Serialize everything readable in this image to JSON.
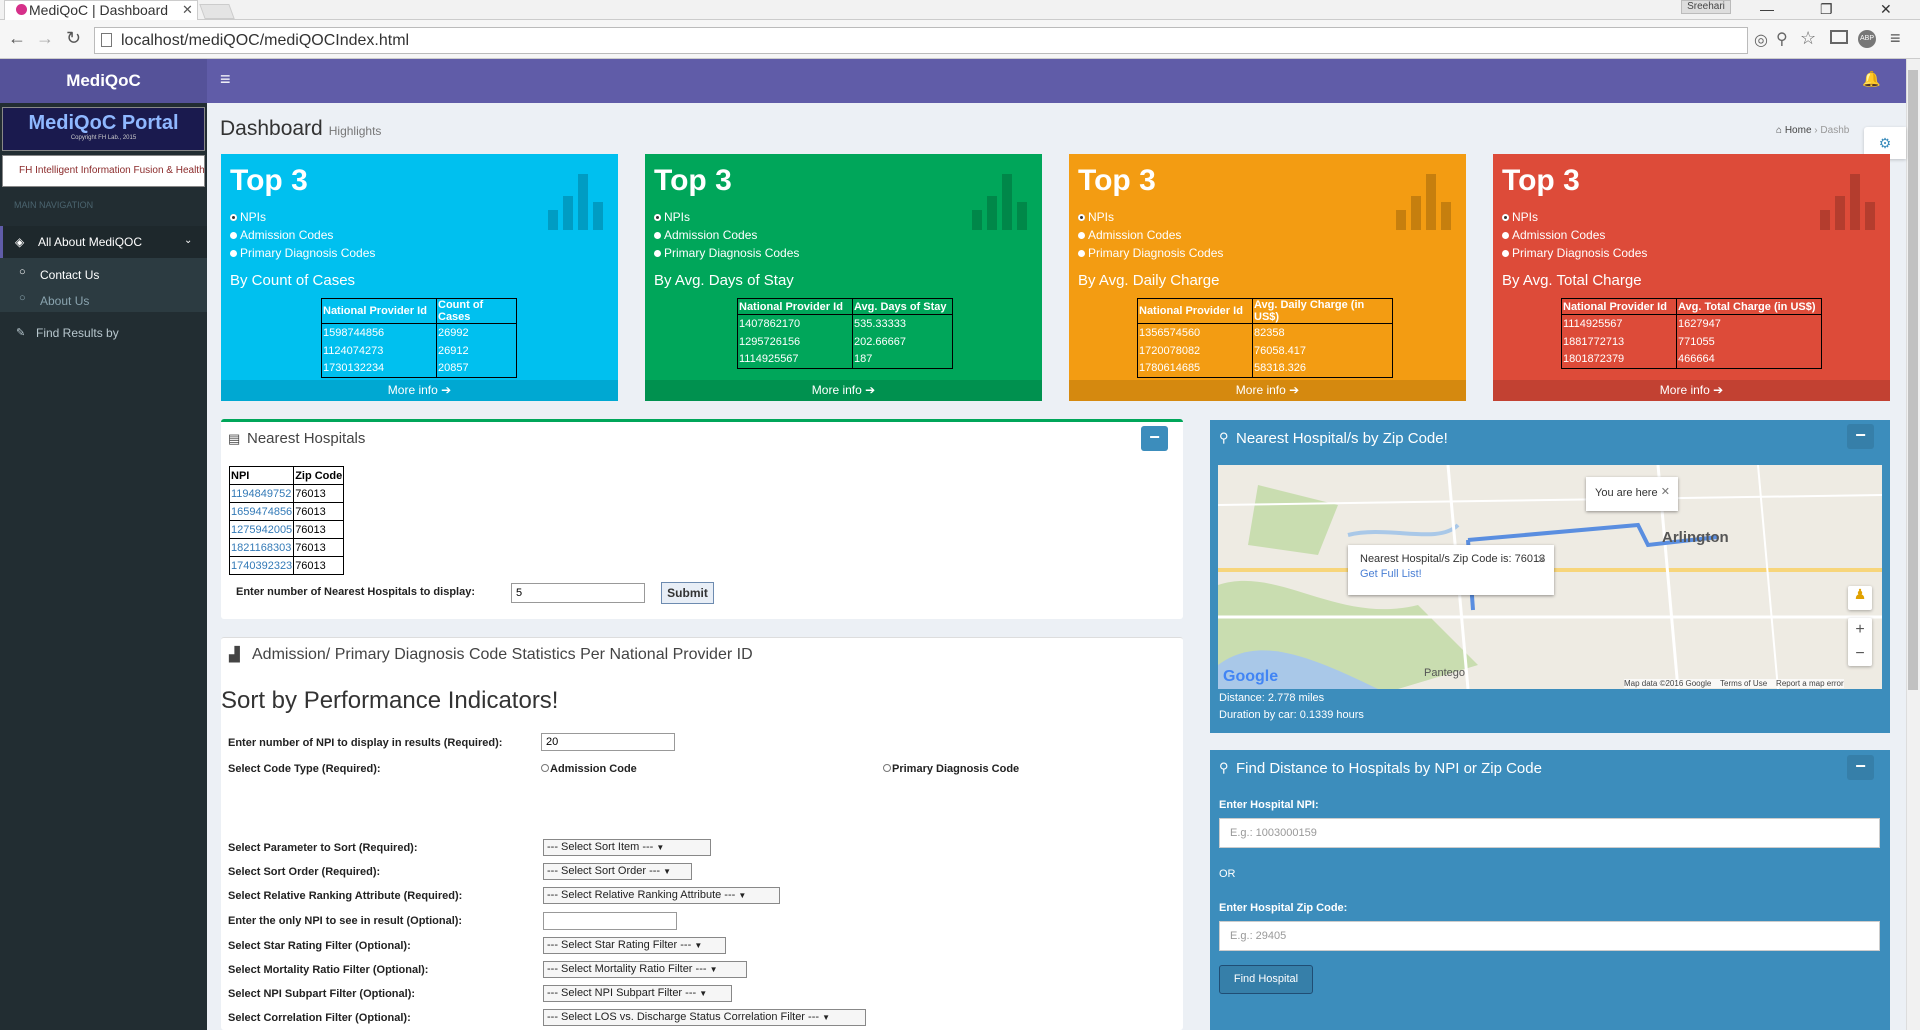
{
  "browser": {
    "tab_title": "MediQoC | Dashboard",
    "url": "localhost/mediQOC/mediQOCIndex.html",
    "user_badge": "Sreehari"
  },
  "colors": {
    "header": "#605ca8",
    "sidebar": "#222d32",
    "aqua": "#00c0ef",
    "green": "#00a65a",
    "yellow": "#f39c12",
    "red": "#dd4b39",
    "primary": "#3c8dbc"
  },
  "app": {
    "logo": "MediQoC"
  },
  "sidebar": {
    "portal_title": "MediQoC Portal",
    "portal_copyright": "Copyright FH Lab., 2015",
    "lab_name": "FH Intelligent Information Fusion & Healthcare Lab",
    "nav_header": "MAIN NAVIGATION",
    "items": [
      {
        "label": "All About MediQOC"
      },
      {
        "label": "Contact Us"
      },
      {
        "label": "About Us"
      },
      {
        "label": "Find Results by"
      }
    ]
  },
  "page": {
    "title": "Dashboard",
    "subtitle": "Highlights",
    "breadcrumb_home": "Home",
    "breadcrumb_current": "Dashb"
  },
  "stat_boxes": [
    {
      "title": "Top 3",
      "options": [
        "NPIs",
        "Admission Codes",
        "Primary Diagnosis Codes"
      ],
      "by": "By Count of Cases",
      "headers": [
        "National Provider Id",
        "Count of Cases"
      ],
      "rows": [
        [
          "1598744856",
          "26992"
        ],
        [
          "1124074273",
          "26912"
        ],
        [
          "1730132234",
          "20857"
        ]
      ],
      "more": "More info"
    },
    {
      "title": "Top 3",
      "options": [
        "NPIs",
        "Admission Codes",
        "Primary Diagnosis Codes"
      ],
      "by": "By Avg. Days of Stay",
      "headers": [
        "National Provider Id",
        "Avg. Days of Stay"
      ],
      "rows": [
        [
          "1407862170",
          "535.33333"
        ],
        [
          "1295726156",
          "202.66667"
        ],
        [
          "1114925567",
          "187"
        ]
      ],
      "more": "More info"
    },
    {
      "title": "Top 3",
      "options": [
        "NPIs",
        "Admission Codes",
        "Primary Diagnosis Codes"
      ],
      "by": "By Avg. Daily Charge",
      "headers": [
        "National Provider Id",
        "Avg. Daily Charge (in US$)"
      ],
      "rows": [
        [
          "1356574560",
          "82358"
        ],
        [
          "1720078082",
          "76058.417"
        ],
        [
          "1780614685",
          "58318.326"
        ]
      ],
      "more": "More info"
    },
    {
      "title": "Top 3",
      "options": [
        "NPIs",
        "Admission Codes",
        "Primary Diagnosis Codes"
      ],
      "by": "By Avg. Total Charge",
      "headers": [
        "National Provider Id",
        "Avg. Total Charge (in US$)"
      ],
      "rows": [
        [
          "1114925567",
          "1627947"
        ],
        [
          "1881772713",
          "771055"
        ],
        [
          "1801872379",
          "466664"
        ]
      ],
      "more": "More info"
    }
  ],
  "nearest": {
    "title": "Nearest Hospitals",
    "headers": [
      "NPI",
      "Zip Code"
    ],
    "rows": [
      [
        "1194849752",
        "76013"
      ],
      [
        "1659474856",
        "76013"
      ],
      [
        "1275942005",
        "76013"
      ],
      [
        "1821168303",
        "76013"
      ],
      [
        "1740392323",
        "76013"
      ]
    ],
    "count_label": "Enter number of Nearest Hospitals to display:",
    "count_value": "5",
    "submit": "Submit"
  },
  "stats": {
    "title": "Admission/ Primary Diagnosis Code Statistics Per National Provider ID",
    "heading": "Sort by Performance Indicators!",
    "npi_count_label": "Enter number of NPI to display in results (Required):",
    "npi_count_value": "20",
    "code_type_label": "Select Code Type (Required):",
    "code_admission": "Admission Code",
    "code_primary": "Primary Diagnosis Code",
    "fields": [
      {
        "label": "Select Parameter to Sort (Required):",
        "value": "--- Select Sort Item ---"
      },
      {
        "label": "Select Sort Order (Required):",
        "value": "--- Select Sort Order ---"
      },
      {
        "label": "Select Relative Ranking Attribute (Required):",
        "value": "--- Select Relative Ranking Attribute ---"
      },
      {
        "label": "Enter the only NPI to see in result (Optional):",
        "value": ""
      },
      {
        "label": "Select Star Rating Filter (Optional):",
        "value": "--- Select Star Rating Filter ---"
      },
      {
        "label": "Select Mortality Ratio Filter (Optional):",
        "value": "--- Select Mortality Ratio Filter ---"
      },
      {
        "label": "Select NPI Subpart Filter (Optional):",
        "value": "--- Select NPI Subpart Filter ---"
      },
      {
        "label": "Select Correlation Filter (Optional):",
        "value": "--- Select LOS vs. Discharge Status Correlation Filter ---"
      }
    ]
  },
  "map_panel": {
    "title": "Nearest Hospital/s by Zip Code!",
    "popup_here": "You are here",
    "popup_zip": "Nearest Hospital/s Zip Code is: 76013",
    "popup_link": "Get Full List!",
    "city": "Arlington",
    "city2": "Pantego",
    "google": "Google",
    "attribution": "Map data ©2016 Google    Terms of Use    Report a map error",
    "distance": "Distance: 2.778 miles",
    "duration": "Duration by car: 0.1339 hours"
  },
  "distance_panel": {
    "title": "Find Distance to Hospitals by NPI or Zip Code",
    "npi_label": "Enter Hospital NPI:",
    "npi_placeholder": "E.g.: 1003000159",
    "or": "OR",
    "zip_label": "Enter Hospital Zip Code:",
    "zip_placeholder": "E.g.: 29405",
    "button": "Find Hospital"
  }
}
